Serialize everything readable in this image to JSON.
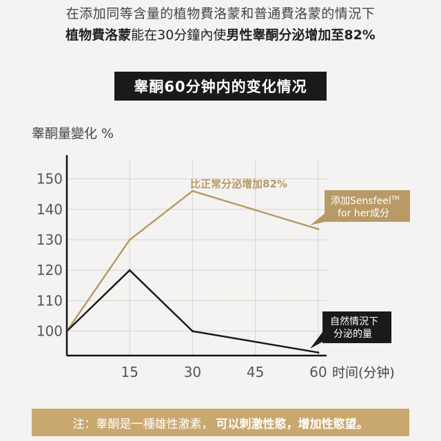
{
  "intro": {
    "line1": "在添加同等含量的植物費洛蒙和普通費洛蒙的情況下",
    "line2_part1": "植物費洛蒙",
    "line2_part2": "能在30分鐘內使",
    "line2_part3": "男性睾酮分泌增加至82%"
  },
  "chart_data": {
    "type": "line",
    "title": "睾酮60分钟内的变化情况",
    "ylabel": "睾酮量變化 %",
    "xlabel": "时间(分钟)",
    "x": [
      0,
      15,
      30,
      60
    ],
    "xticks": [
      15,
      30,
      45,
      60
    ],
    "yticks": [
      100,
      110,
      120,
      130,
      140,
      150
    ],
    "xlim": [
      0,
      62
    ],
    "ylim": [
      92,
      156
    ],
    "grid": true,
    "series": [
      {
        "name": "添加Sensfeel™ for her成分",
        "color": "#b89a66",
        "values": [
          100,
          130,
          146,
          133.5
        ]
      },
      {
        "name": "自然情況下分泌的量",
        "color": "#1a1a1a",
        "values": [
          100,
          120,
          100,
          93
        ]
      }
    ],
    "annotation": "比正常分泌增加82%",
    "legend_gold_line1": "添加Sensfeel",
    "legend_gold_tm": "TM",
    "legend_gold_line2": "for her成分",
    "legend_black_line1": "自然情況下",
    "legend_black_line2": "分泌的量"
  },
  "footer": {
    "part1": "注：睾酮是一種雄性激素，",
    "part2": "可以刺激性慾，增加性慾望。"
  }
}
